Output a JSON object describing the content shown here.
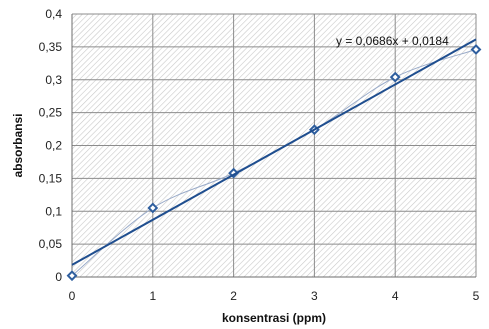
{
  "chart_data": {
    "type": "scatter",
    "xlabel": "konsentrasi (ppm)",
    "ylabel": "absorbansi",
    "xlim": [
      0,
      5
    ],
    "ylim": [
      0,
      0.4
    ],
    "x_ticks": [
      0,
      1,
      2,
      3,
      4,
      5
    ],
    "x_tick_labels": [
      "0",
      "1",
      "2",
      "3",
      "4",
      "5"
    ],
    "y_ticks": [
      0,
      0.05,
      0.1,
      0.15,
      0.2,
      0.25,
      0.3,
      0.35,
      0.4
    ],
    "y_tick_labels": [
      "0",
      "0,05",
      "0,1",
      "0,15",
      "0,2",
      "0,25",
      "0,3",
      "0,35",
      "0,4"
    ],
    "grid": true,
    "background": "hatched",
    "series": [
      {
        "x": [
          0,
          1,
          2,
          3,
          4,
          5
        ],
        "y": [
          0.002,
          0.105,
          0.158,
          0.224,
          0.304,
          0.346
        ],
        "marker": "diamond-open",
        "smooth_line": true,
        "color": "#2e5e9e",
        "line_color": "#9aabc9"
      }
    ],
    "trendline": {
      "slope": 0.0686,
      "intercept": 0.0184,
      "x_range": [
        0,
        5
      ],
      "color": "#1f4e8f",
      "equation_label": "y = 0,0686x + 0,0184"
    }
  }
}
